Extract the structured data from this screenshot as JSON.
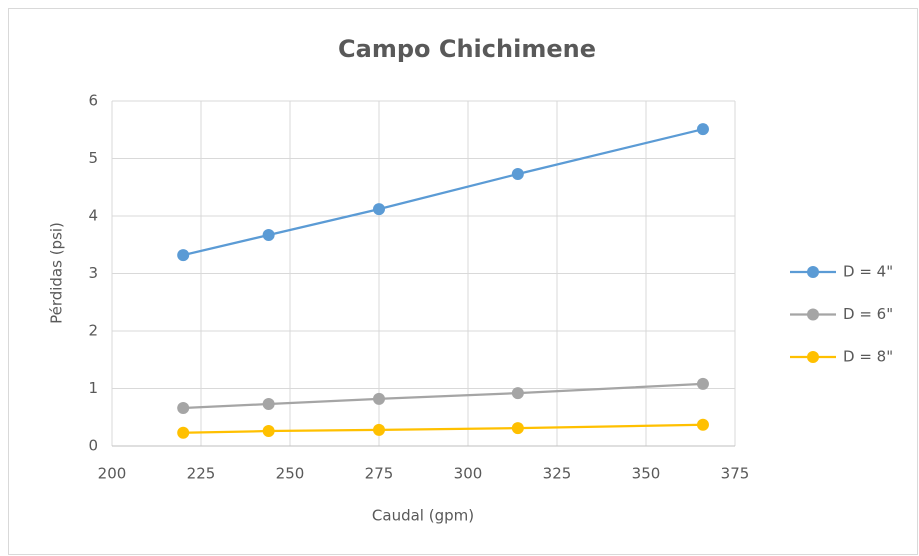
{
  "chart_data": {
    "type": "line",
    "title": "Campo Chichimene",
    "x_label": "Caudal (gpm)",
    "y_label": "Pérdidas (psi)",
    "x": [
      220,
      244,
      275,
      314,
      366
    ],
    "series": [
      {
        "name": "D = 4\"",
        "color": "#5b9bd5",
        "values": [
          3.32,
          3.67,
          4.12,
          4.73,
          5.51
        ]
      },
      {
        "name": "D = 6\"",
        "color": "#a5a5a5",
        "values": [
          0.66,
          0.73,
          0.82,
          0.92,
          1.08
        ]
      },
      {
        "name": "D = 8\"",
        "color": "#ffc000",
        "values": [
          0.23,
          0.26,
          0.28,
          0.31,
          0.37
        ]
      }
    ],
    "xlim": [
      200,
      375
    ],
    "xticks": [
      200,
      225,
      250,
      275,
      300,
      325,
      350,
      375
    ],
    "ylim": [
      0,
      6
    ],
    "yticks": [
      0,
      1,
      2,
      3,
      4,
      5,
      6
    ],
    "grid": true,
    "legend": "right"
  }
}
